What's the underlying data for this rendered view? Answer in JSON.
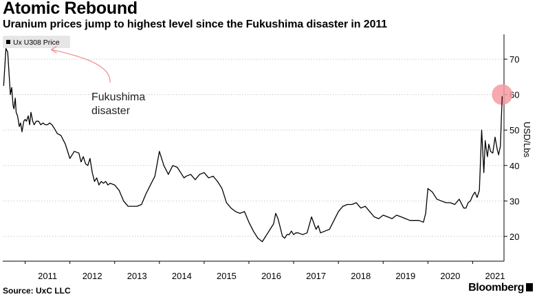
{
  "header": {
    "title": "Atomic Rebound",
    "subtitle": "Uranium prices jump to highest level since the Fukushima disaster in 2011"
  },
  "footer": {
    "source": "Source: UxC LLC",
    "brand": "Bloomberg"
  },
  "colors": {
    "line": "#000000",
    "grid": "#c8c8c8",
    "annotation": "#f08a8a",
    "highlight_fill": "#f59aa0",
    "legend_bg": "#e6e6e6"
  },
  "chart_data": {
    "type": "line",
    "title": "Atomic Rebound",
    "subtitle": "Uranium prices jump to highest level since the Fukushima disaster in 2011",
    "ylabel": "USD/Lbs",
    "ylim": [
      13,
      77
    ],
    "xlim": [
      2010.5,
      2021.7
    ],
    "grid": true,
    "legend_position": "top-left",
    "x_ticks": [
      "2011",
      "2012",
      "2013",
      "2014",
      "2015",
      "2016",
      "2017",
      "2018",
      "2019",
      "2020",
      "2021"
    ],
    "y_ticks": [
      20,
      30,
      40,
      50,
      60,
      70
    ],
    "annotation": {
      "text": "Fukushima disaster",
      "x": 2011.0,
      "y": 72.5
    },
    "highlight": {
      "x": 2021.66,
      "y": 60
    },
    "series": [
      {
        "name": "Ux U308 Price",
        "x": [
          2010.52,
          2010.57,
          2010.61,
          2010.63,
          2010.67,
          2010.7,
          2010.73,
          2010.75,
          2010.78,
          2010.8,
          2010.83,
          2010.87,
          2010.9,
          2010.93,
          2010.97,
          2011.0,
          2011.03,
          2011.07,
          2011.1,
          2011.13,
          2011.17,
          2011.2,
          2011.25,
          2011.3,
          2011.35,
          2011.4,
          2011.45,
          2011.5,
          2011.55,
          2011.6,
          2011.65,
          2011.72,
          2011.8,
          2011.9,
          2012.0,
          2012.1,
          2012.2,
          2012.25,
          2012.3,
          2012.35,
          2012.4,
          2012.45,
          2012.5,
          2012.55,
          2012.6,
          2012.65,
          2012.7,
          2012.75,
          2012.8,
          2012.85,
          2012.9,
          2013.0,
          2013.1,
          2013.2,
          2013.3,
          2013.4,
          2013.5,
          2013.6,
          2013.7,
          2013.8,
          2013.9,
          2014.0,
          2014.1,
          2014.2,
          2014.3,
          2014.4,
          2014.45,
          2014.5,
          2014.55,
          2014.6,
          2014.7,
          2014.8,
          2014.9,
          2015.0,
          2015.1,
          2015.2,
          2015.3,
          2015.4,
          2015.5,
          2015.6,
          2015.7,
          2015.8,
          2015.9,
          2016.0,
          2016.1,
          2016.2,
          2016.3,
          2016.4,
          2016.5,
          2016.55,
          2016.6,
          2016.65,
          2016.7,
          2016.75,
          2016.8,
          2016.85,
          2016.9,
          2016.95,
          2017.0,
          2017.05,
          2017.1,
          2017.2,
          2017.3,
          2017.4,
          2017.5,
          2017.55,
          2017.6,
          2017.7,
          2017.8,
          2017.9,
          2018.0,
          2018.1,
          2018.2,
          2018.3,
          2018.4,
          2018.5,
          2018.6,
          2018.7,
          2018.8,
          2018.9,
          2019.0,
          2019.1,
          2019.2,
          2019.3,
          2019.4,
          2019.5,
          2019.6,
          2019.7,
          2019.8,
          2019.9,
          2019.95,
          2020.0,
          2020.05,
          2020.1,
          2020.2,
          2020.3,
          2020.4,
          2020.5,
          2020.6,
          2020.7,
          2020.8,
          2020.85,
          2020.9,
          2020.95,
          2021.0,
          2021.05,
          2021.1,
          2021.15,
          2021.2,
          2021.25,
          2021.28,
          2021.3,
          2021.33,
          2021.36,
          2021.4,
          2021.45,
          2021.5,
          2021.55,
          2021.58,
          2021.62,
          2021.64,
          2021.66
        ],
        "values": [
          62.5,
          73.0,
          72.0,
          68.0,
          60.0,
          62.0,
          57.0,
          56.0,
          59.0,
          55.0,
          54.0,
          51.0,
          52.0,
          49.5,
          52.5,
          53.0,
          52.5,
          54.0,
          51.5,
          55.0,
          52.5,
          51.5,
          52.5,
          52.5,
          51.5,
          52.0,
          51.5,
          51.5,
          52.0,
          51.5,
          50.5,
          49.0,
          48.5,
          46.0,
          42.0,
          44.0,
          43.5,
          41.0,
          42.5,
          40.5,
          40.0,
          42.0,
          38.0,
          35.5,
          36.5,
          34.5,
          35.5,
          35.0,
          35.5,
          34.5,
          35.0,
          34.5,
          33.0,
          30.0,
          28.5,
          28.5,
          28.5,
          29.0,
          32.0,
          34.5,
          37.0,
          44.0,
          40.0,
          37.5,
          40.0,
          39.5,
          38.5,
          37.5,
          36.5,
          37.0,
          37.5,
          36.0,
          37.5,
          38.0,
          36.5,
          37.0,
          35.5,
          33.5,
          29.5,
          28.0,
          27.0,
          26.5,
          27.0,
          24.0,
          21.5,
          19.5,
          18.5,
          20.5,
          22.5,
          23.5,
          26.5,
          25.0,
          22.5,
          20.0,
          19.5,
          20.5,
          20.5,
          21.5,
          20.5,
          21.0,
          21.0,
          20.5,
          21.0,
          25.5,
          22.0,
          23.0,
          21.0,
          21.5,
          22.0,
          24.5,
          27.0,
          28.5,
          29.0,
          29.0,
          29.5,
          28.0,
          28.5,
          27.0,
          25.5,
          25.0,
          26.0,
          25.5,
          25.0,
          26.0,
          25.5,
          25.0,
          24.5,
          24.5,
          24.5,
          24.0,
          26.5,
          33.5,
          33.0,
          32.5,
          30.5,
          30.0,
          29.5,
          29.5,
          29.0,
          30.5,
          28.0,
          28.0,
          29.5,
          30.0,
          31.5,
          32.5,
          31.0,
          33.0,
          50.0,
          38.0,
          47.0,
          45.0,
          42.5,
          46.0,
          44.0,
          43.5,
          48.0,
          44.5,
          43.0,
          45.5,
          53.0,
          59.5
        ]
      }
    ]
  }
}
